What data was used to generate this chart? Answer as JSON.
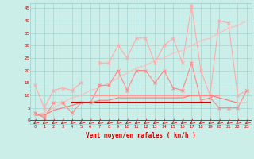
{
  "x": [
    0,
    1,
    2,
    3,
    4,
    5,
    6,
    7,
    8,
    9,
    10,
    11,
    12,
    13,
    14,
    15,
    16,
    17,
    18,
    19,
    20,
    21,
    22,
    23
  ],
  "series": [
    {
      "name": "rafales_light",
      "color": "#FFAAAA",
      "lw": 0.8,
      "marker": "x",
      "ms": 2.5,
      "mew": 0.7,
      "y": [
        14,
        5,
        12,
        13,
        12,
        15,
        null,
        23,
        23,
        30,
        25,
        33,
        33,
        23,
        30,
        33,
        23,
        46,
        20,
        10,
        40,
        39,
        10,
        12
      ]
    },
    {
      "name": "rafales_trend",
      "color": "#FFBBBB",
      "lw": 0.8,
      "marker": null,
      "ms": 0,
      "mew": 0,
      "y": [
        2,
        3,
        5,
        7,
        9,
        10,
        12,
        13,
        15,
        17,
        19,
        21,
        22,
        24,
        25,
        27,
        28,
        30,
        32,
        33,
        35,
        37,
        38,
        40
      ]
    },
    {
      "name": "moyen_light",
      "color": "#FF8888",
      "lw": 0.8,
      "marker": "x",
      "ms": 2.5,
      "mew": 0.7,
      "y": [
        3,
        1,
        7,
        7,
        3,
        7,
        7,
        14,
        14,
        20,
        12,
        20,
        20,
        15,
        20,
        13,
        12,
        23,
        8,
        9,
        5,
        5,
        5,
        12
      ]
    },
    {
      "name": "flat_a",
      "color": "#FFAAAA",
      "lw": 0.8,
      "marker": null,
      "ms": 0,
      "mew": 0,
      "y": [
        null,
        null,
        null,
        null,
        null,
        null,
        7,
        7,
        7,
        7,
        7,
        7,
        7,
        7,
        7,
        7,
        7,
        7,
        7,
        7,
        7,
        null,
        null,
        null
      ]
    },
    {
      "name": "flat_b",
      "color": "#FF9999",
      "lw": 0.8,
      "marker": null,
      "ms": 0,
      "mew": 0,
      "y": [
        null,
        null,
        null,
        null,
        null,
        null,
        10,
        10,
        10,
        10,
        10,
        10,
        10,
        10,
        10,
        10,
        10,
        10,
        10,
        10,
        10,
        null,
        null,
        null
      ]
    },
    {
      "name": "flat_red1",
      "color": "#DD0000",
      "lw": 1.2,
      "marker": null,
      "ms": 0,
      "mew": 0,
      "y": [
        null,
        null,
        null,
        null,
        7,
        7,
        7,
        7,
        7,
        7,
        7,
        7,
        7,
        7,
        7,
        7,
        7,
        7,
        7,
        7,
        null,
        null,
        null,
        null
      ]
    },
    {
      "name": "flat_red2",
      "color": "#CC0000",
      "lw": 1.5,
      "marker": null,
      "ms": 0,
      "mew": 0,
      "y": [
        null,
        null,
        null,
        null,
        7,
        7,
        7,
        7,
        7,
        7,
        7,
        7,
        7,
        7,
        7,
        7,
        7,
        7,
        7,
        7,
        null,
        null,
        null,
        null
      ]
    },
    {
      "name": "moyen_trend",
      "color": "#FF7777",
      "lw": 0.8,
      "marker": null,
      "ms": 0,
      "mew": 0,
      "y": [
        2,
        2,
        4,
        5,
        6,
        7,
        7,
        8,
        8,
        9,
        9,
        9,
        9,
        9,
        9,
        9,
        9,
        10,
        10,
        10,
        9,
        8,
        7,
        7
      ]
    }
  ],
  "bg_color": "#CCEEE8",
  "grid_color": "#99CCCC",
  "axis_color": "#CC0000",
  "xlabel": "Vent moyen/en rafales ( km/h )",
  "xlabel_color": "#CC0000",
  "xlabel_fontsize": 5.5,
  "xtick_labels": [
    "0",
    "1",
    "2",
    "3",
    "4",
    "5",
    "6",
    "7",
    "8",
    "9",
    "10",
    "11",
    "12",
    "13",
    "14",
    "15",
    "16",
    "17",
    "18",
    "19",
    "20",
    "21",
    "22",
    "23"
  ],
  "ytick_labels": [
    "0",
    "5",
    "10",
    "15",
    "20",
    "25",
    "30",
    "35",
    "40",
    "45"
  ],
  "ytick_values": [
    0,
    5,
    10,
    15,
    20,
    25,
    30,
    35,
    40,
    45
  ],
  "ylim": [
    -1.5,
    47
  ],
  "xlim": [
    -0.5,
    23.5
  ],
  "arrow_color": "#CC0000"
}
